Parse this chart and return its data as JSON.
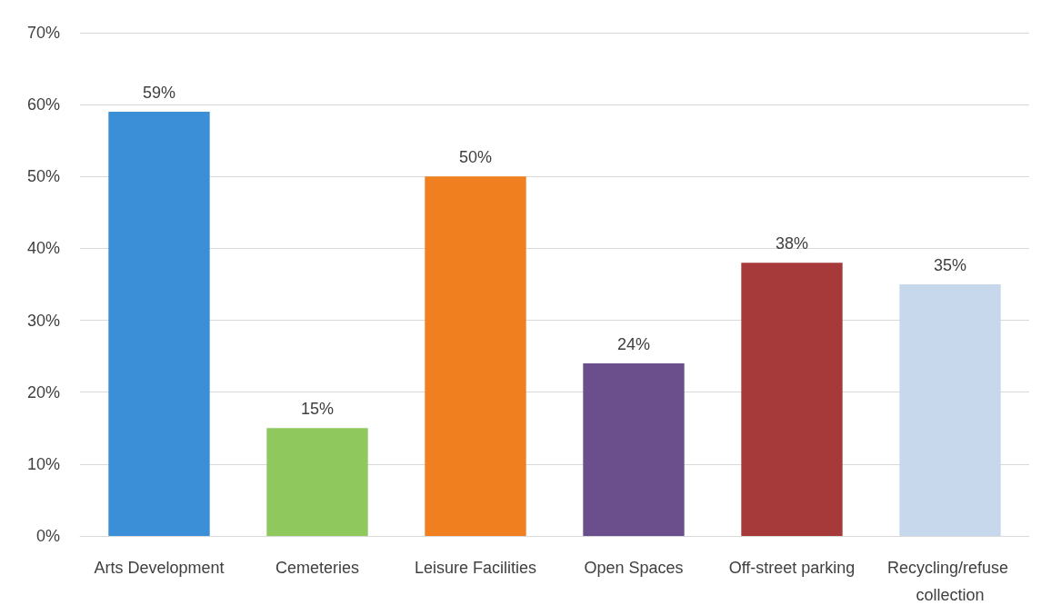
{
  "chart_data": {
    "type": "bar",
    "categories": [
      "Arts Development",
      "Cemeteries",
      "Leisure Facilities",
      "Open Spaces",
      "Off-street parking",
      "Recycling/refuse collection"
    ],
    "values": [
      59,
      15,
      50,
      24,
      38,
      35
    ],
    "colors": [
      "#3a8fd6",
      "#8fc95e",
      "#f0801f",
      "#6b4f8c",
      "#a63a3a",
      "#c8d8ec"
    ],
    "value_labels": [
      "59%",
      "15%",
      "50%",
      "24%",
      "38%",
      "35%"
    ],
    "ylim": [
      0,
      70
    ],
    "yticks": [
      {
        "value": 0,
        "label": "0%"
      },
      {
        "value": 10,
        "label": "10%"
      },
      {
        "value": 20,
        "label": "20%"
      },
      {
        "value": 30,
        "label": "30%"
      },
      {
        "value": 40,
        "label": "40%"
      },
      {
        "value": 50,
        "label": "50%"
      },
      {
        "value": 60,
        "label": "60%"
      },
      {
        "value": 70,
        "label": "70%"
      }
    ],
    "grid": "y"
  }
}
